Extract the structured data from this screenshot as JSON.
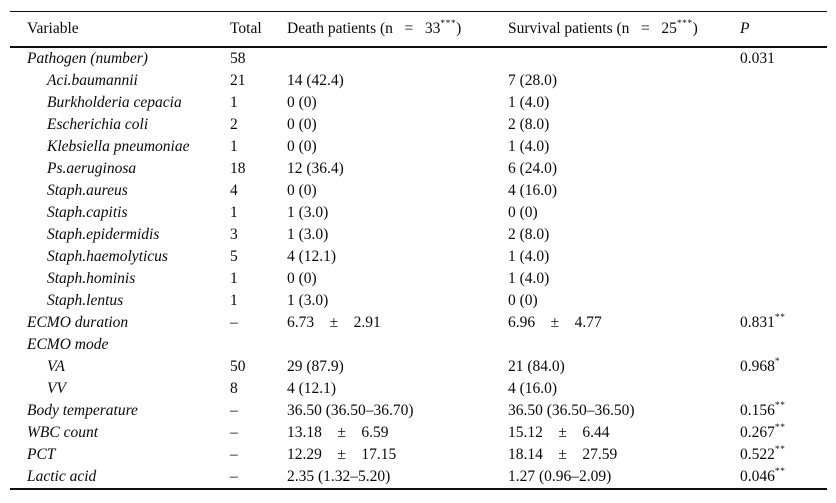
{
  "table": {
    "header": {
      "variable": "Variable",
      "total": "Total",
      "death_main": "Death patients (n   =   33",
      "death_sup": "***",
      "death_close": ")",
      "survival_main": "Survival patients (n   =   25",
      "survival_sup": "***",
      "survival_close": ")",
      "p": "P"
    },
    "group_counts": {
      "total": 58,
      "death": 33,
      "survival": 25
    },
    "rows": [
      {
        "indent": 0,
        "label": "Pathogen (number)",
        "total": "58",
        "death": "",
        "survival": "",
        "p": "0.031",
        "p_sup": ""
      },
      {
        "indent": 1,
        "label": "Aci.baumannii",
        "total": "21",
        "death": "14 (42.4)",
        "survival": "7 (28.0)",
        "p": "",
        "p_sup": ""
      },
      {
        "indent": 1,
        "label": "Burkholderia cepacia",
        "total": "1",
        "death": "0 (0)",
        "survival": "1 (4.0)",
        "p": "",
        "p_sup": ""
      },
      {
        "indent": 1,
        "label": "Escherichia coli",
        "total": "2",
        "death": "0 (0)",
        "survival": "2 (8.0)",
        "p": "",
        "p_sup": ""
      },
      {
        "indent": 1,
        "label": "Klebsiella pneumoniae",
        "total": "1",
        "death": "0 (0)",
        "survival": "1 (4.0)",
        "p": "",
        "p_sup": ""
      },
      {
        "indent": 1,
        "label": "Ps.aeruginosa",
        "total": "18",
        "death": "12 (36.4)",
        "survival": "6 (24.0)",
        "p": "",
        "p_sup": ""
      },
      {
        "indent": 1,
        "label": "Staph.aureus",
        "total": "4",
        "death": "0 (0)",
        "survival": "4 (16.0)",
        "p": "",
        "p_sup": ""
      },
      {
        "indent": 1,
        "label": "Staph.capitis",
        "total": "1",
        "death": "1 (3.0)",
        "survival": "0 (0)",
        "p": "",
        "p_sup": ""
      },
      {
        "indent": 1,
        "label": "Staph.epidermidis",
        "total": "3",
        "death": "1 (3.0)",
        "survival": "2 (8.0)",
        "p": "",
        "p_sup": ""
      },
      {
        "indent": 1,
        "label": "Staph.haemolyticus",
        "total": "5",
        "death": "4 (12.1)",
        "survival": "1 (4.0)",
        "p": "",
        "p_sup": ""
      },
      {
        "indent": 1,
        "label": "Staph.hominis",
        "total": "1",
        "death": "0 (0)",
        "survival": "1 (4.0)",
        "p": "",
        "p_sup": ""
      },
      {
        "indent": 1,
        "label": "Staph.lentus",
        "total": "1",
        "death": "1 (3.0)",
        "survival": "0 (0)",
        "p": "",
        "p_sup": ""
      },
      {
        "indent": 0,
        "label": "ECMO duration",
        "total": "–",
        "death": "6.73    ±    2.91",
        "survival": "6.96    ±    4.77",
        "p": "0.831",
        "p_sup": "**"
      },
      {
        "indent": 0,
        "label": "ECMO mode",
        "total": "",
        "death": "",
        "survival": "",
        "p": "",
        "p_sup": ""
      },
      {
        "indent": 1,
        "label": "VA",
        "total": "50",
        "death": "29 (87.9)",
        "survival": "21 (84.0)",
        "p": "0.968",
        "p_sup": "*"
      },
      {
        "indent": 1,
        "label": "VV",
        "total": "8",
        "death": "4 (12.1)",
        "survival": "4 (16.0)",
        "p": "",
        "p_sup": ""
      },
      {
        "indent": 0,
        "label": "Body temperature",
        "total": "–",
        "death": "36.50 (36.50–36.70)",
        "survival": "36.50 (36.50–36.50)",
        "p": "0.156",
        "p_sup": "**"
      },
      {
        "indent": 0,
        "label": "WBC count",
        "total": "–",
        "death": "13.18    ±    6.59",
        "survival": "15.12    ±    6.44",
        "p": "0.267",
        "p_sup": "**"
      },
      {
        "indent": 0,
        "label": "PCT",
        "total": "–",
        "death": "12.29    ±    17.15",
        "survival": "18.14    ±    27.59",
        "p": "0.522",
        "p_sup": "**"
      },
      {
        "indent": 0,
        "label": "Lactic acid",
        "total": "–",
        "death": "2.35 (1.32–5.20)",
        "survival": "1.27 (0.96–2.09)",
        "p": "0.046",
        "p_sup": "**"
      }
    ]
  }
}
